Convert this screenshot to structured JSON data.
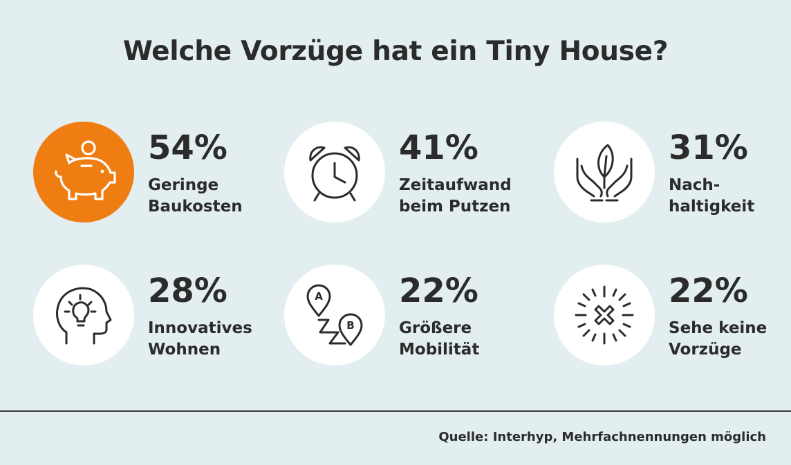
{
  "title": "Welche Vorzüge hat ein Tiny House?",
  "source": "Quelle: Interhyp, Mehrfachnennungen möglich",
  "colors": {
    "background": "#e2eeef",
    "highlight": "#ef7d11",
    "text": "#2b2b2b",
    "circle": "#ffffff"
  },
  "chart_data": {
    "type": "table",
    "title": "Welche Vorzüge hat ein Tiny House?",
    "unit": "%",
    "categories": [
      "Geringe Baukosten",
      "Zeitaufwand beim Putzen",
      "Nachhaltigkeit",
      "Innovatives Wohnen",
      "Größere Mobilität",
      "Sehe keine Vorzüge"
    ],
    "values": [
      54,
      41,
      31,
      28,
      22,
      22
    ],
    "items": [
      {
        "value": "54%",
        "label": "Geringe\nBaukosten",
        "icon": "piggy-bank-icon",
        "highlight": true
      },
      {
        "value": "41%",
        "label": "Zeitaufwand\nbeim Putzen",
        "icon": "alarm-clock-icon",
        "highlight": false
      },
      {
        "value": "31%",
        "label": "Nach-\nhaltigkeit",
        "icon": "hands-leaf-icon",
        "highlight": false
      },
      {
        "value": "28%",
        "label": "Innovatives\nWohnen",
        "icon": "head-lightbulb-icon",
        "highlight": false
      },
      {
        "value": "22%",
        "label": "Größere\nMobilität",
        "icon": "route-a-to-b-icon",
        "highlight": false
      },
      {
        "value": "22%",
        "label": "Sehe keine\nVorzüge",
        "icon": "burst-x-icon",
        "highlight": false
      }
    ],
    "icon_letters": {
      "route_start": "A",
      "route_end": "B"
    }
  }
}
